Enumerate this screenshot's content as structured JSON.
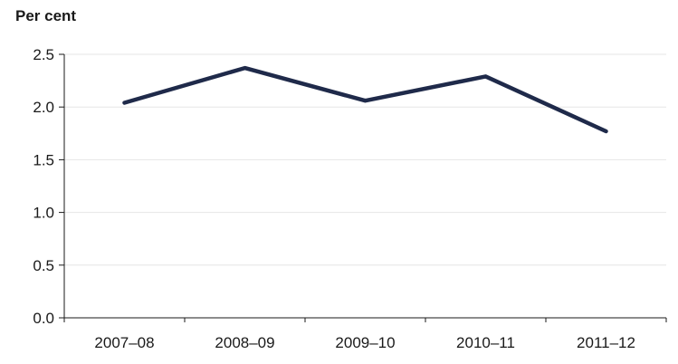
{
  "chart_data": {
    "type": "line",
    "ylabel": "Per cent",
    "xlabel": "",
    "categories": [
      "2007–08",
      "2008–09",
      "2009–10",
      "2010–11",
      "2011–12"
    ],
    "series": [
      {
        "values": [
          2.04,
          2.37,
          2.06,
          2.29,
          1.77
        ]
      }
    ],
    "ylim": [
      0,
      2.5
    ],
    "yticks": [
      "0.0",
      "0.5",
      "1.0",
      "1.5",
      "2.0",
      "2.5"
    ],
    "grid": true,
    "colors": {
      "series": "#1f2a4a",
      "grid": "#e6e6e6",
      "axis": "#1a1a1a"
    }
  }
}
